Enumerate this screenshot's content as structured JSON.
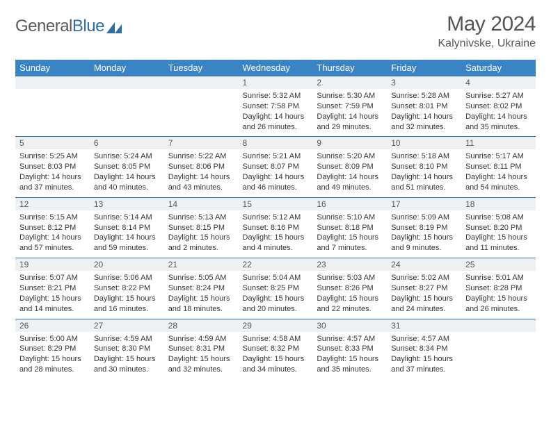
{
  "logo": {
    "text1": "General",
    "text2": "Blue",
    "accent": "#2f6fa8"
  },
  "title": "May 2024",
  "location": "Kalynivske, Ukraine",
  "colors": {
    "header_bg": "#3a83c5",
    "border": "#2f6fa8",
    "daynum_bg": "#eef1f4",
    "text": "#333333"
  },
  "weekdays": [
    "Sunday",
    "Monday",
    "Tuesday",
    "Wednesday",
    "Thursday",
    "Friday",
    "Saturday"
  ],
  "weeks": [
    [
      null,
      null,
      null,
      {
        "n": "1",
        "sr": "5:32 AM",
        "ss": "7:58 PM",
        "dl": "14 hours and 26 minutes."
      },
      {
        "n": "2",
        "sr": "5:30 AM",
        "ss": "7:59 PM",
        "dl": "14 hours and 29 minutes."
      },
      {
        "n": "3",
        "sr": "5:28 AM",
        "ss": "8:01 PM",
        "dl": "14 hours and 32 minutes."
      },
      {
        "n": "4",
        "sr": "5:27 AM",
        "ss": "8:02 PM",
        "dl": "14 hours and 35 minutes."
      }
    ],
    [
      {
        "n": "5",
        "sr": "5:25 AM",
        "ss": "8:03 PM",
        "dl": "14 hours and 37 minutes."
      },
      {
        "n": "6",
        "sr": "5:24 AM",
        "ss": "8:05 PM",
        "dl": "14 hours and 40 minutes."
      },
      {
        "n": "7",
        "sr": "5:22 AM",
        "ss": "8:06 PM",
        "dl": "14 hours and 43 minutes."
      },
      {
        "n": "8",
        "sr": "5:21 AM",
        "ss": "8:07 PM",
        "dl": "14 hours and 46 minutes."
      },
      {
        "n": "9",
        "sr": "5:20 AM",
        "ss": "8:09 PM",
        "dl": "14 hours and 49 minutes."
      },
      {
        "n": "10",
        "sr": "5:18 AM",
        "ss": "8:10 PM",
        "dl": "14 hours and 51 minutes."
      },
      {
        "n": "11",
        "sr": "5:17 AM",
        "ss": "8:11 PM",
        "dl": "14 hours and 54 minutes."
      }
    ],
    [
      {
        "n": "12",
        "sr": "5:15 AM",
        "ss": "8:12 PM",
        "dl": "14 hours and 57 minutes."
      },
      {
        "n": "13",
        "sr": "5:14 AM",
        "ss": "8:14 PM",
        "dl": "14 hours and 59 minutes."
      },
      {
        "n": "14",
        "sr": "5:13 AM",
        "ss": "8:15 PM",
        "dl": "15 hours and 2 minutes."
      },
      {
        "n": "15",
        "sr": "5:12 AM",
        "ss": "8:16 PM",
        "dl": "15 hours and 4 minutes."
      },
      {
        "n": "16",
        "sr": "5:10 AM",
        "ss": "8:18 PM",
        "dl": "15 hours and 7 minutes."
      },
      {
        "n": "17",
        "sr": "5:09 AM",
        "ss": "8:19 PM",
        "dl": "15 hours and 9 minutes."
      },
      {
        "n": "18",
        "sr": "5:08 AM",
        "ss": "8:20 PM",
        "dl": "15 hours and 11 minutes."
      }
    ],
    [
      {
        "n": "19",
        "sr": "5:07 AM",
        "ss": "8:21 PM",
        "dl": "15 hours and 14 minutes."
      },
      {
        "n": "20",
        "sr": "5:06 AM",
        "ss": "8:22 PM",
        "dl": "15 hours and 16 minutes."
      },
      {
        "n": "21",
        "sr": "5:05 AM",
        "ss": "8:24 PM",
        "dl": "15 hours and 18 minutes."
      },
      {
        "n": "22",
        "sr": "5:04 AM",
        "ss": "8:25 PM",
        "dl": "15 hours and 20 minutes."
      },
      {
        "n": "23",
        "sr": "5:03 AM",
        "ss": "8:26 PM",
        "dl": "15 hours and 22 minutes."
      },
      {
        "n": "24",
        "sr": "5:02 AM",
        "ss": "8:27 PM",
        "dl": "15 hours and 24 minutes."
      },
      {
        "n": "25",
        "sr": "5:01 AM",
        "ss": "8:28 PM",
        "dl": "15 hours and 26 minutes."
      }
    ],
    [
      {
        "n": "26",
        "sr": "5:00 AM",
        "ss": "8:29 PM",
        "dl": "15 hours and 28 minutes."
      },
      {
        "n": "27",
        "sr": "4:59 AM",
        "ss": "8:30 PM",
        "dl": "15 hours and 30 minutes."
      },
      {
        "n": "28",
        "sr": "4:59 AM",
        "ss": "8:31 PM",
        "dl": "15 hours and 32 minutes."
      },
      {
        "n": "29",
        "sr": "4:58 AM",
        "ss": "8:32 PM",
        "dl": "15 hours and 34 minutes."
      },
      {
        "n": "30",
        "sr": "4:57 AM",
        "ss": "8:33 PM",
        "dl": "15 hours and 35 minutes."
      },
      {
        "n": "31",
        "sr": "4:57 AM",
        "ss": "8:34 PM",
        "dl": "15 hours and 37 minutes."
      },
      null
    ]
  ],
  "labels": {
    "sunrise": "Sunrise:",
    "sunset": "Sunset:",
    "daylight": "Daylight:"
  }
}
